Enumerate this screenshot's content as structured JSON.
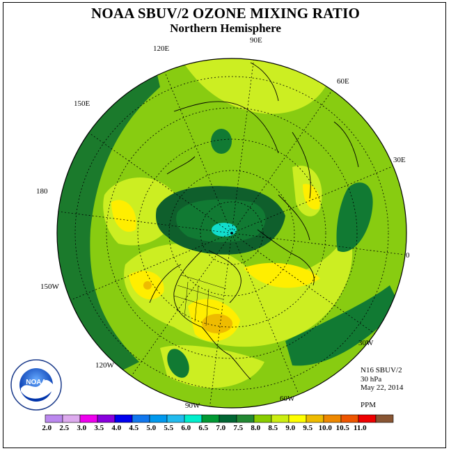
{
  "title": "NOAA SBUV/2 OZONE MIXING RATIO",
  "subtitle": "Northern Hemisphere",
  "info": {
    "instrument": "N16 SBUV/2",
    "level": "30 hPa",
    "date": "May 22, 2014",
    "units": "PPM"
  },
  "longitude_labels": [
    "90E",
    "60E",
    "30E",
    "0",
    "30W",
    "60W",
    "90W",
    "120W",
    "150W",
    "180",
    "150E",
    "120E"
  ],
  "colorbar": {
    "labels": [
      "2.0",
      "2.5",
      "3.0",
      "3.5",
      "4.0",
      "4.5",
      "5.0",
      "5.5",
      "6.0",
      "6.5",
      "7.0",
      "7.5",
      "8.0",
      "8.5",
      "9.0",
      "9.5",
      "10.0",
      "10.5",
      "11.0"
    ],
    "colors": [
      "#bb88ee",
      "#ddaaee",
      "#ee00ee",
      "#8800dd",
      "#0000ee",
      "#1177ee",
      "#0099ee",
      "#22bbee",
      "#00eecc",
      "#009933",
      "#006633",
      "#228833",
      "#88cc00",
      "#ccee11",
      "#ffff00",
      "#eebb00",
      "#ee8800",
      "#ee5500",
      "#ee0000",
      "#885533"
    ]
  },
  "logo_text": "NOAA"
}
